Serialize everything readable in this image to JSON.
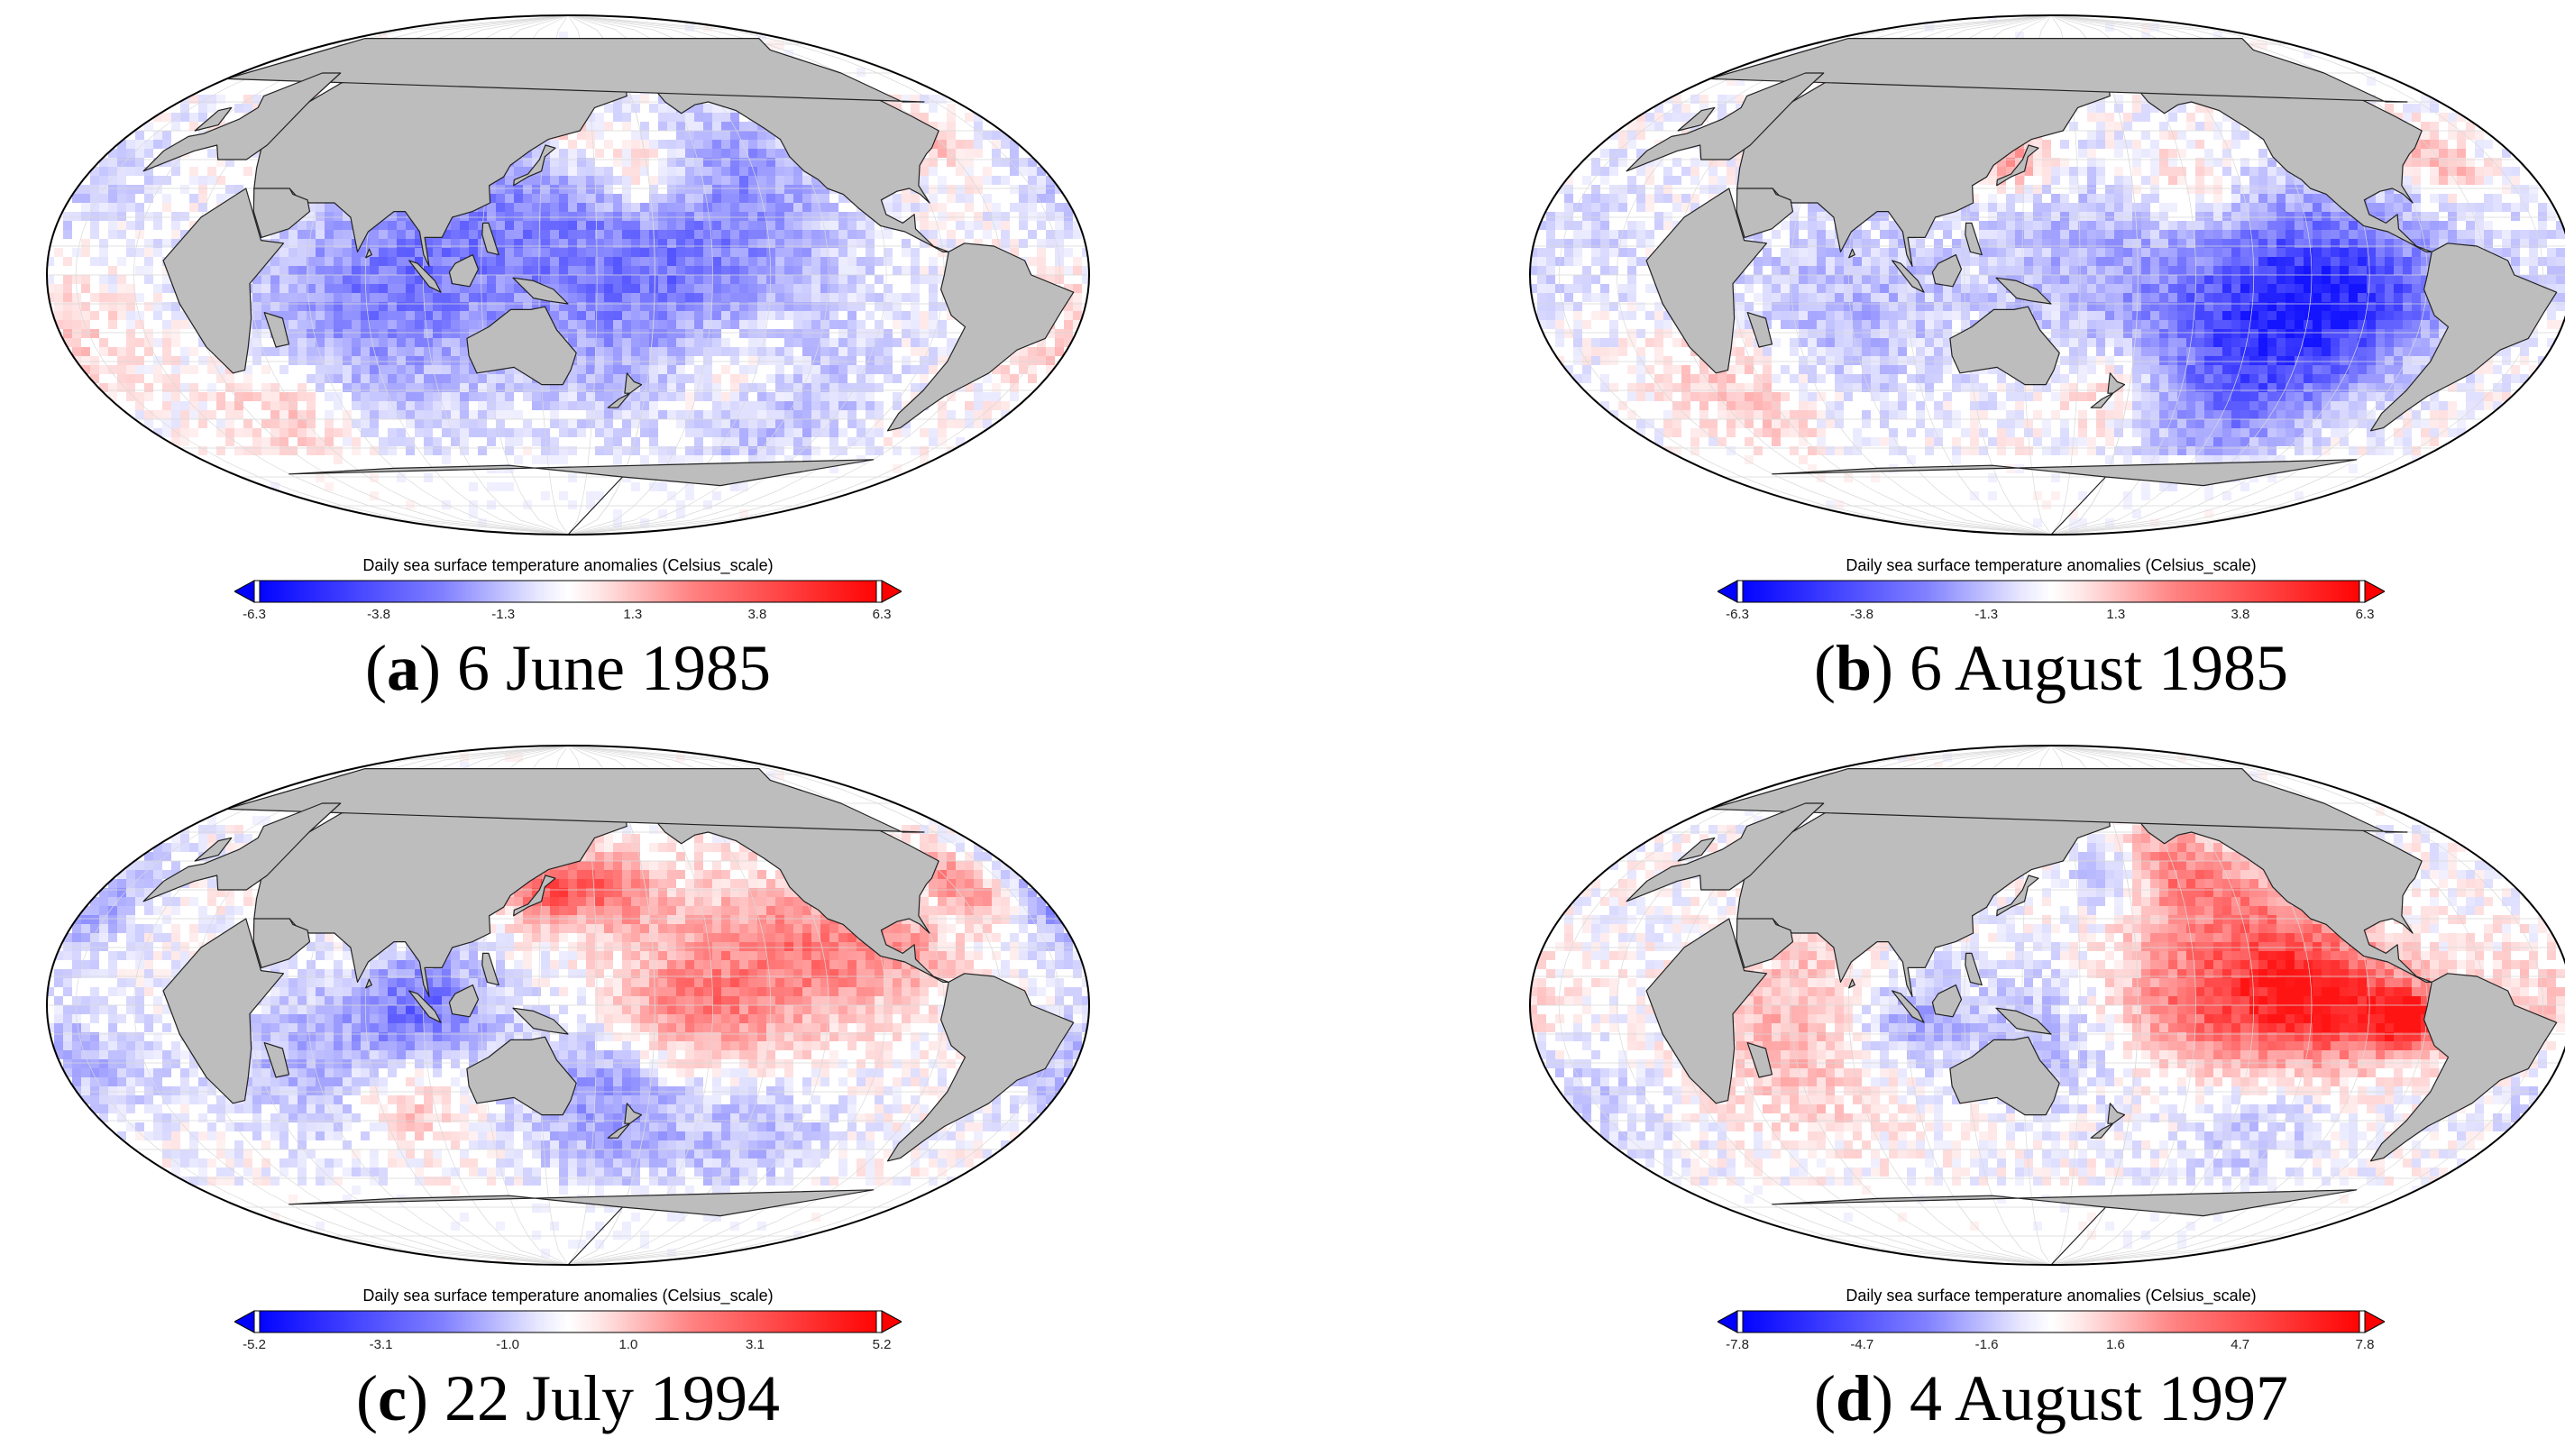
{
  "figure": {
    "panels": [
      {
        "id": "a",
        "letter": "a",
        "date": "6 June 1985",
        "colorbar_title": "Daily sea surface temperature anomalies (Celsius_scale)",
        "ticks": [
          "-6.3",
          "-3.8",
          "-1.3",
          "1.3",
          "3.8",
          "6.3"
        ],
        "range_min": -6.3,
        "range_max": 6.3,
        "pattern": "cool"
      },
      {
        "id": "b",
        "letter": "b",
        "date": "6 August 1985",
        "colorbar_title": "Daily sea surface temperature anomalies (Celsius_scale)",
        "ticks": [
          "-6.3",
          "-3.8",
          "-1.3",
          "1.3",
          "3.8",
          "6.3"
        ],
        "range_min": -6.3,
        "range_max": 6.3,
        "pattern": "cool-strong"
      },
      {
        "id": "c",
        "letter": "c",
        "date": "22 July 1994",
        "colorbar_title": "Daily sea surface temperature anomalies (Celsius_scale)",
        "ticks": [
          "-5.2",
          "-3.1",
          "-1.0",
          "1.0",
          "3.1",
          "5.2"
        ],
        "range_min": -5.2,
        "range_max": 5.2,
        "pattern": "mixed"
      },
      {
        "id": "d",
        "letter": "d",
        "date": "4 August 1997",
        "colorbar_title": "Daily sea surface temperature anomalies (Celsius_scale)",
        "ticks": [
          "-7.8",
          "-4.7",
          "-1.6",
          "1.6",
          "4.7",
          "7.8"
        ],
        "range_min": -7.8,
        "range_max": 7.8,
        "pattern": "elnino"
      }
    ]
  },
  "colors": {
    "land": "#bdbdbd",
    "coast": "#222222",
    "ocean": "#ffffff",
    "cold": "#0000ff",
    "warm": "#ff0000",
    "neutral": "#ffffff",
    "grid": "#d9d9d9"
  }
}
